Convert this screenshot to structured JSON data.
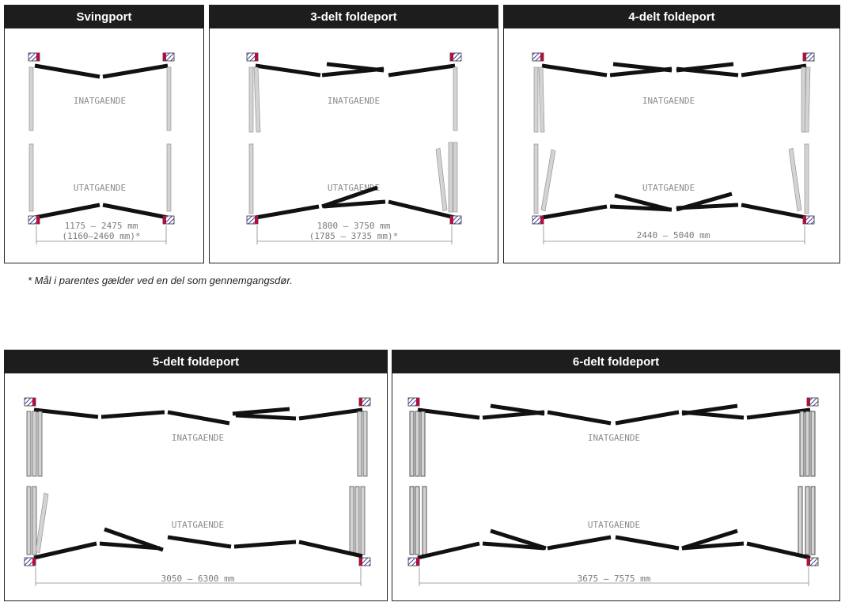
{
  "panels": [
    {
      "title": "Svingport",
      "inward_label": "INATGAENDE",
      "outward_label": "UTATGAENDE",
      "dimension": "1175 – 2475 mm",
      "dimension_alt": "(1160–2460 mm)*"
    },
    {
      "title": "3-delt foldeport",
      "inward_label": "INATGAENDE",
      "outward_label": "UTATGAENDE",
      "dimension": "1800 – 3750 mm",
      "dimension_alt": "(1785 – 3735 mm)*"
    },
    {
      "title": "4-delt foldeport",
      "inward_label": "INATGAENDE",
      "outward_label": "UTATGAENDE",
      "dimension": "2440 – 5040 mm"
    },
    {
      "title": "5-delt foldeport",
      "inward_label": "INATGAENDE",
      "outward_label": "UTATGAENDE",
      "dimension": "3050 – 6300 mm"
    },
    {
      "title": "6-delt foldeport",
      "inward_label": "INATGAENDE",
      "outward_label": "UTATGAENDE",
      "dimension": "3675 – 7575 mm"
    }
  ],
  "footnote": "* Mål i parentes gælder ved en del som gennemgangsdør.",
  "colors": {
    "header_bg": "#1d1d1d",
    "leaf": "#111111",
    "open_leaf": "#cfcfcf",
    "hinge": "#b0103a",
    "hatch": "#3a3aa0",
    "dim_text": "#7a7a7a"
  }
}
